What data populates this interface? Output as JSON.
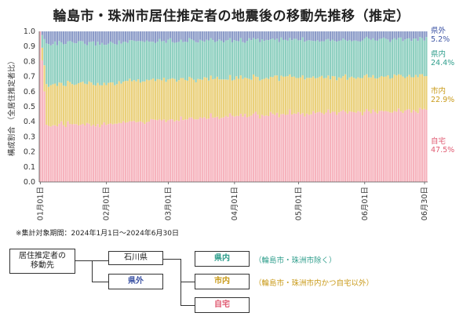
{
  "title": "輪島市・珠洲市居住推定者の地震後の移動先推移（推定）",
  "note": "※集計対象期間：2024年1月1日～2024年6月30日",
  "colors": {
    "self": "#f6b3bd",
    "city": "#ead07a",
    "pref": "#8dcfbf",
    "outside": "#8b9bc8"
  },
  "chart_data": {
    "type": "area",
    "subtype": "stacked-100-percent-bar",
    "ylabel": "構成割合 （全居住推定者比）",
    "ylim": [
      0.0,
      1.0
    ],
    "yticks": [
      "0.0",
      "0.1",
      "0.2",
      "0.3",
      "0.4",
      "0.5",
      "0.6",
      "0.7",
      "0.8",
      "0.9",
      "1.0"
    ],
    "xticks": [
      "01月01日",
      "02月01日",
      "03月01日",
      "04月01日",
      "05月01日",
      "06月01日",
      "06月30日"
    ],
    "x_start": "2024-01-01",
    "x_end": "2024-06-30",
    "grid": false,
    "series": [
      {
        "name": "自宅",
        "color": "#f6b3bd",
        "final_label": "47.5%",
        "values_at_ticks": [
          1.0,
          0.38,
          0.42,
          0.44,
          0.455,
          0.465,
          0.475
        ]
      },
      {
        "name": "市内",
        "color": "#ead07a",
        "final_label": "22.9%",
        "values_at_ticks": [
          0.0,
          0.27,
          0.27,
          0.25,
          0.24,
          0.235,
          0.229
        ]
      },
      {
        "name": "県内",
        "color": "#8dcfbf",
        "final_label": "24.4%",
        "values_at_ticks": [
          0.0,
          0.27,
          0.25,
          0.25,
          0.25,
          0.248,
          0.244
        ]
      },
      {
        "name": "県外",
        "color": "#8b9bc8",
        "final_label": "5.2%",
        "values_at_ticks": [
          0.0,
          0.08,
          0.06,
          0.06,
          0.055,
          0.052,
          0.052
        ]
      }
    ]
  },
  "diagram": {
    "root": "居住推定者の\n移動先",
    "ishikawa": "石川県",
    "outside": "県外",
    "pref": "県内",
    "city": "市内",
    "home": "自宅",
    "pref_desc": "（輪島市・珠洲市除く）",
    "city_desc": "（輪島市・珠洲市内かつ自宅以外）"
  }
}
